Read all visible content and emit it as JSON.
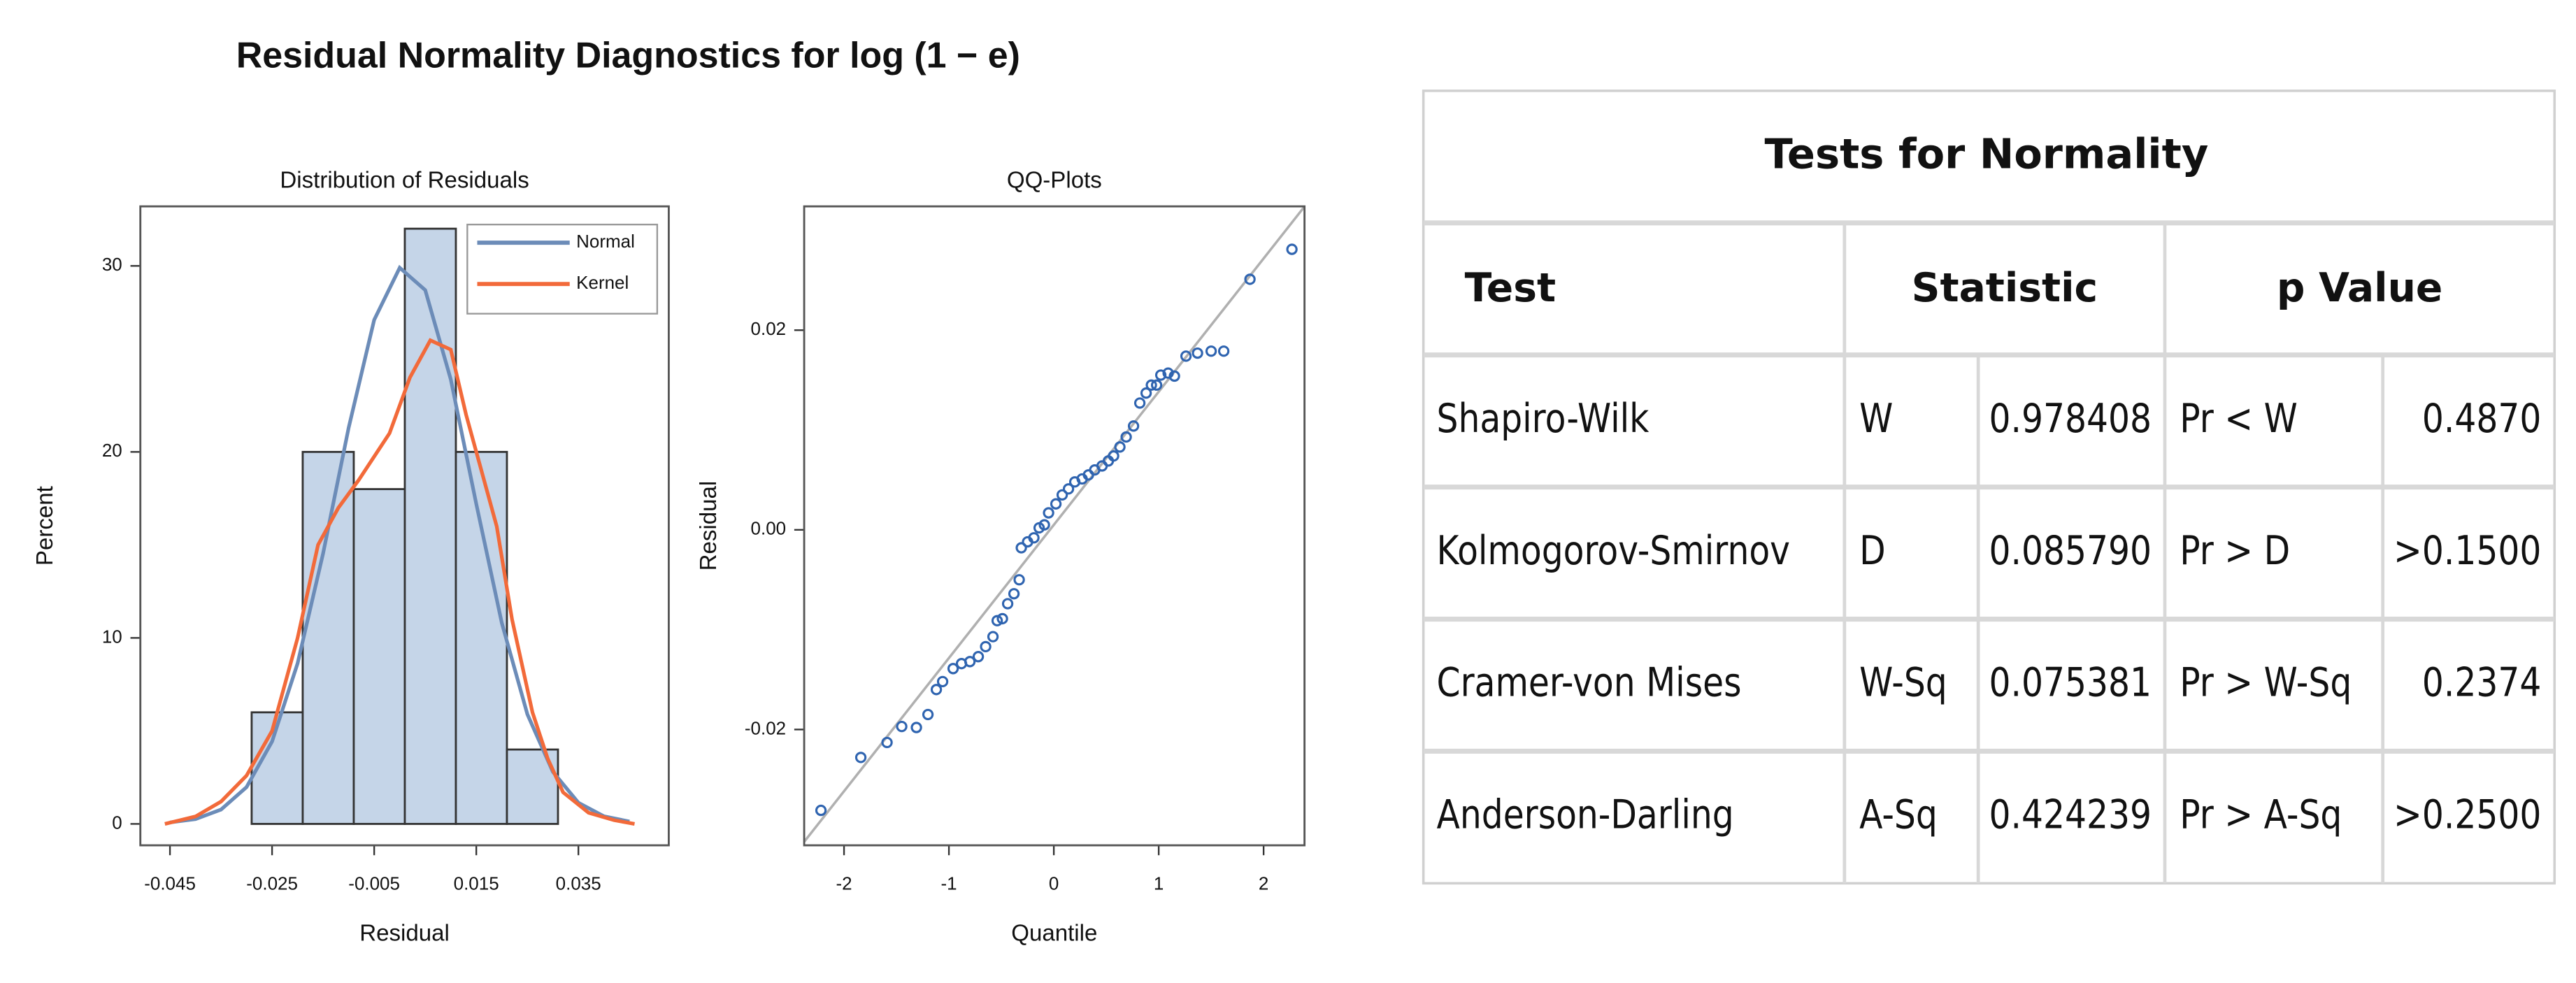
{
  "title": "Residual Normality Diagnostics for log (1 − e)",
  "chart_data": [
    {
      "type": "histogram",
      "title": "Distribution of Residuals",
      "x_label": "Residual",
      "y_label": "Percent",
      "bins": [
        -0.029,
        -0.019,
        -0.009,
        0.001,
        0.011,
        0.021,
        0.031
      ],
      "values": [
        6,
        20,
        18,
        32,
        20,
        4
      ],
      "color": "#c5d5e8",
      "xlim": [
        -0.0508,
        0.0527
      ],
      "ylim": [
        -1.15,
        33.2
      ],
      "xticks": [
        -0.045,
        -0.025,
        -0.005,
        0.015,
        0.035
      ],
      "yticks": [
        0,
        10,
        20,
        30
      ],
      "legend": "top-right",
      "series": [
        {
          "name": "Normal",
          "color": "#6c8cb8",
          "x": [
            -0.045,
            -0.04,
            -0.035,
            -0.03,
            -0.025,
            -0.02,
            -0.015,
            -0.01,
            -0.005,
            0,
            0.005,
            0.01,
            0.015,
            0.02,
            0.025,
            0.03,
            0.035,
            0.04,
            0.045
          ],
          "values": [
            0.08,
            0.26,
            0.77,
            1.98,
            4.43,
            8.63,
            14.55,
            21.3,
            27.1,
            29.9,
            28.7,
            23.9,
            17.2,
            10.8,
            5.9,
            2.8,
            1.14,
            0.41,
            0.13
          ]
        },
        {
          "name": "Kernel",
          "color": "#f26a3a",
          "x": [
            -0.046,
            -0.04,
            -0.035,
            -0.03,
            -0.025,
            -0.02,
            -0.016,
            -0.012,
            -0.008,
            -0.002,
            0.002,
            0.006,
            0.01,
            0.013,
            0.016,
            0.019,
            0.022,
            0.026,
            0.029,
            0.032,
            0.037,
            0.042,
            0.046
          ],
          "values": [
            0,
            0.4,
            1.2,
            2.6,
            5,
            10,
            15,
            17,
            18.5,
            21,
            24,
            26,
            25.5,
            22,
            19,
            16,
            11,
            6,
            3.5,
            1.7,
            0.6,
            0.2,
            0
          ]
        }
      ]
    },
    {
      "type": "scatter",
      "title": "QQ-Plots",
      "x_label": "Quantile",
      "y_label": "Residual",
      "color": "#2f64b0",
      "x": [
        -2.22,
        -1.84,
        -1.59,
        -1.45,
        -1.31,
        -1.2,
        -1.12,
        -1.06,
        -0.96,
        -0.88,
        -0.8,
        -0.72,
        -0.65,
        -0.58,
        -0.54,
        -0.49,
        -0.44,
        -0.38,
        -0.33,
        -0.31,
        -0.25,
        -0.19,
        -0.14,
        -0.09,
        -0.05,
        0.02,
        0.08,
        0.14,
        0.2,
        0.27,
        0.33,
        0.39,
        0.46,
        0.52,
        0.57,
        0.63,
        0.69,
        0.76,
        0.82,
        0.88,
        0.93,
        0.98,
        1.02,
        1.09,
        1.15,
        1.26,
        1.37,
        1.5,
        1.62,
        1.87,
        2.27
      ],
      "values": [
        -0.0281,
        -0.0228,
        -0.0213,
        -0.0197,
        -0.0198,
        -0.0185,
        -0.016,
        -0.0152,
        -0.0139,
        -0.0134,
        -0.0132,
        -0.0127,
        -0.0117,
        -0.0107,
        -0.0091,
        -0.0089,
        -0.0074,
        -0.0064,
        -0.005,
        -0.0018,
        -0.0012,
        -0.0008,
        0.0002,
        0.0005,
        0.0017,
        0.0026,
        0.0035,
        0.0041,
        0.0048,
        0.0051,
        0.0055,
        0.006,
        0.0064,
        0.0069,
        0.0074,
        0.0083,
        0.0093,
        0.0104,
        0.0127,
        0.0137,
        0.0145,
        0.0145,
        0.0155,
        0.0157,
        0.0154,
        0.0174,
        0.0177,
        0.0179,
        0.0179,
        0.0251,
        0.0281
      ],
      "xlim": [
        -2.38,
        2.39
      ],
      "ylim": [
        -0.0316,
        0.0324
      ],
      "xticks": [
        -2,
        -1,
        0,
        1,
        2
      ],
      "yticks": [
        -0.02,
        {
          "value": 0,
          "label": "0.00"
        },
        0.02
      ],
      "reference_line": {
        "intercept": 0.0005,
        "slope": 0.01334,
        "color": "#b0b0b0"
      }
    }
  ],
  "table": {
    "title": "Tests for Normality",
    "header": [
      "Test",
      "Statistic",
      "p Value"
    ],
    "rows": [
      [
        "Shapiro-Wilk",
        "W",
        "0.978408",
        "Pr < W",
        "0.4870"
      ],
      [
        "Kolmogorov-Smirnov",
        "D",
        "0.085790",
        "Pr > D",
        ">0.1500"
      ],
      [
        "Cramer-von Mises",
        "W-Sq",
        "0.075381",
        "Pr > W-Sq",
        "0.2374"
      ],
      [
        "Anderson-Darling",
        "A-Sq",
        "0.424239",
        "Pr > A-Sq",
        ">0.2500"
      ]
    ]
  }
}
